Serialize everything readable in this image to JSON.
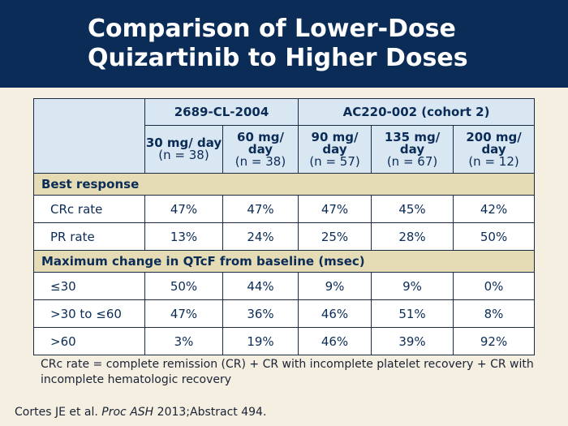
{
  "title": {
    "line1": "Comparison of Lower-Dose",
    "line2": "Quizartinib to Higher Doses"
  },
  "table": {
    "groups": [
      "2689-CL-2004",
      "AC220-002 (cohort 2)"
    ],
    "doses": [
      {
        "dose": "30 mg/ day",
        "n": "(n = 38)"
      },
      {
        "dose": "60 mg/ day",
        "n": "(n = 38)"
      },
      {
        "dose": "90 mg/ day",
        "n": "(n = 57)"
      },
      {
        "dose": "135 mg/ day",
        "n": "(n = 67)"
      },
      {
        "dose": "200 mg/ day",
        "n": "(n = 12)"
      }
    ],
    "sections": [
      {
        "heading": "Best response",
        "rows": [
          {
            "label": "CRc rate",
            "values": [
              "47%",
              "47%",
              "47%",
              "45%",
              "42%"
            ]
          },
          {
            "label": "PR rate",
            "values": [
              "13%",
              "24%",
              "25%",
              "28%",
              "50%"
            ]
          }
        ]
      },
      {
        "heading": "Maximum change in QTcF from baseline (msec)",
        "rows": [
          {
            "label": "≤30",
            "values": [
              "50%",
              "44%",
              "9%",
              "9%",
              "0%"
            ]
          },
          {
            "label": ">30 to ≤60",
            "values": [
              "47%",
              "36%",
              "46%",
              "51%",
              "8%"
            ]
          },
          {
            "label": ">60",
            "values": [
              "3%",
              "19%",
              "46%",
              "39%",
              "92%"
            ]
          }
        ]
      }
    ]
  },
  "footnote": "CRc rate = complete remission (CR) + CR with incomplete platelet recovery + CR with incomplete hematologic recovery",
  "citation": {
    "authors": "Cortes JE et al.",
    "journal": "Proc ASH",
    "rest": "2013;Abstract 494."
  },
  "colors": {
    "title_bar": "#0b2c57",
    "background": "#f4efe0",
    "header_fill": "#d8e7f2",
    "section_fill": "#e5dcb6",
    "text": "#0b2c57"
  }
}
